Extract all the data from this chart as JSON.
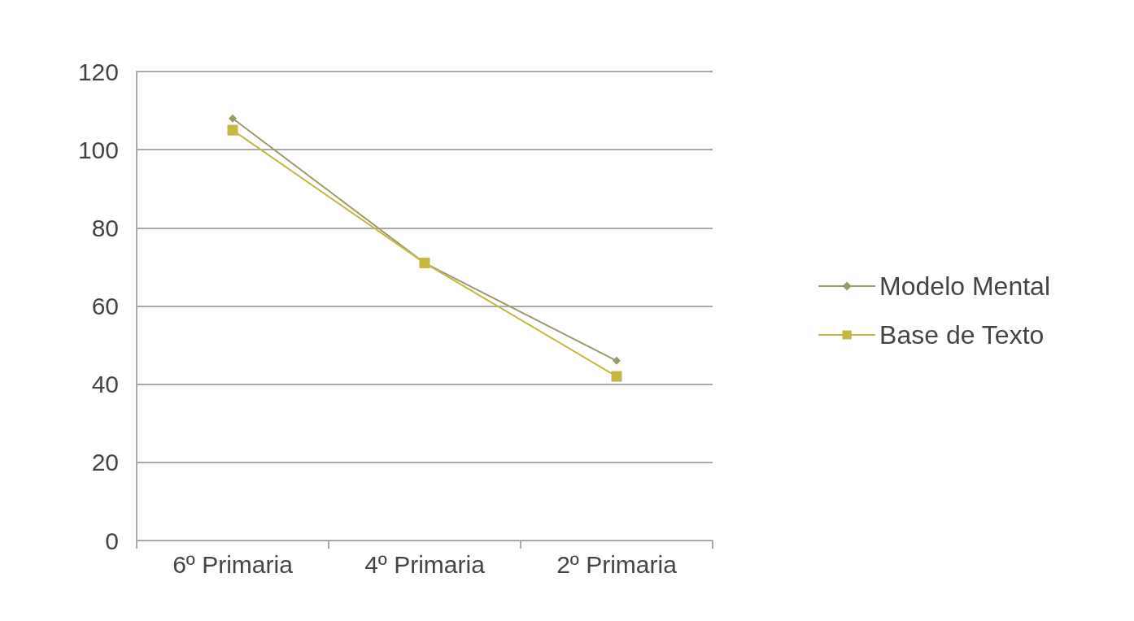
{
  "chart_data": {
    "type": "line",
    "categories": [
      "6º Primaria",
      "4º Primaria",
      "2º Primaria"
    ],
    "series": [
      {
        "name": "Modelo Mental",
        "color": "#9c9a6a",
        "marker": "diamond",
        "values": [
          108,
          71,
          46
        ]
      },
      {
        "name": "Base de Texto",
        "color": "#c4b840",
        "marker": "square",
        "values": [
          105,
          71,
          42
        ]
      }
    ],
    "ylim": [
      0,
      120
    ],
    "yticks": [
      0,
      20,
      40,
      60,
      80,
      100,
      120
    ],
    "grid": "y",
    "legend": "right"
  }
}
